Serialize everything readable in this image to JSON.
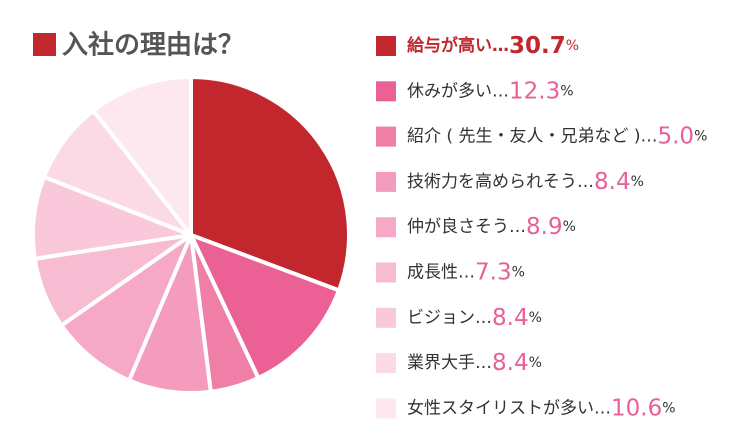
{
  "chart_data": {
    "type": "pie",
    "title": "入社の理由は？",
    "categories": [
      "給与が高い",
      "休みが多い",
      "紹介 ( 先生・友人・兄弟など )",
      "技術力を高められそう",
      "仲が良さそう",
      "成長性",
      "ビジョン",
      "業界大手",
      "女性スタイリストが多い"
    ],
    "values": [
      30.7,
      12.3,
      5.0,
      8.4,
      8.9,
      7.3,
      8.4,
      8.4,
      10.6
    ],
    "value_labels": [
      "30.7",
      "12.3",
      "5.0",
      "8.4",
      "8.9",
      "7.3",
      "8.4",
      "8.4",
      "10.6"
    ],
    "unit": "%",
    "separator": "…",
    "colors": [
      "#c1272d",
      "#ec6195",
      "#f07fa8",
      "#f39cbd",
      "#f5a9c6",
      "#f7bcd2",
      "#f9c9db",
      "#fbd9e5",
      "#fde8ef"
    ]
  }
}
